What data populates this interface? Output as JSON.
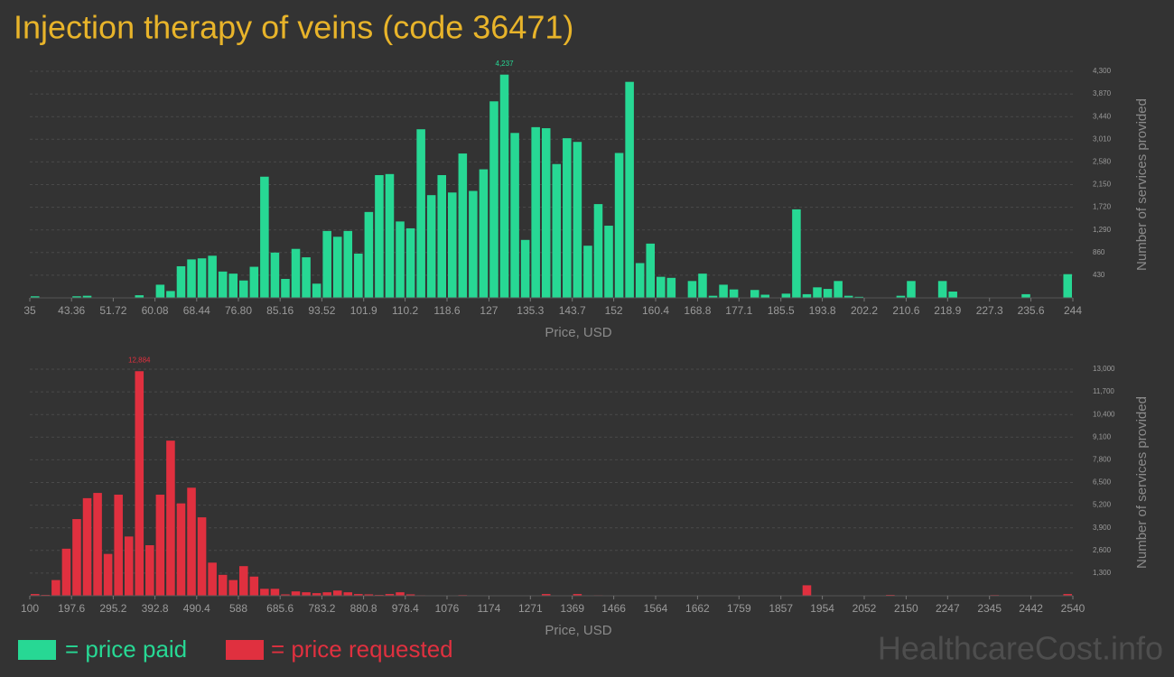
{
  "title": "Injection therapy of veins (code 36471)",
  "chart_data": [
    {
      "type": "histogram",
      "color": "#27d894",
      "xlabel": "Price, USD",
      "ylabel": "Number of services provided",
      "grid": true,
      "bins": [
        35,
        37.09,
        39.18,
        41.27,
        43.36,
        45.45,
        47.54,
        49.63,
        51.72,
        53.81,
        55.9,
        57.99,
        60.08,
        62.17,
        64.26,
        66.35,
        68.44,
        70.53,
        72.62,
        74.71,
        76.8,
        78.89,
        80.98,
        83.07,
        85.16,
        87.25,
        89.34,
        91.43,
        93.52,
        95.61,
        97.7,
        99.79,
        101.88,
        103.97,
        106.06,
        108.15,
        110.24,
        112.33,
        114.42,
        116.51,
        118.6,
        120.69,
        122.78,
        124.87,
        126.96,
        129.05,
        131.14,
        133.23,
        135.32,
        137.41,
        139.5,
        141.59,
        143.68,
        145.77,
        147.86,
        149.95,
        152.04,
        154.13,
        156.22,
        158.31,
        160.4,
        162.49,
        164.58,
        166.67,
        168.76,
        170.85,
        172.94,
        175.03,
        177.12,
        179.21,
        181.3,
        183.39,
        185.48,
        187.57,
        189.66,
        191.75,
        193.84,
        195.93,
        198.02,
        200.11,
        202.2,
        204.29,
        206.38,
        208.47,
        210.56,
        212.65,
        214.74,
        216.83,
        218.92,
        221.01,
        223.1,
        225.19,
        227.28,
        229.37,
        231.46,
        233.55,
        235.64,
        237.73,
        239.82,
        241.91,
        244
      ],
      "values": [
        30,
        0,
        0,
        0,
        30,
        40,
        0,
        0,
        0,
        0,
        50,
        0,
        250,
        130,
        600,
        730,
        750,
        800,
        500,
        460,
        330,
        590,
        2300,
        860,
        360,
        930,
        770,
        270,
        1270,
        1160,
        1270,
        840,
        1630,
        2330,
        2350,
        1450,
        1320,
        3200,
        1950,
        2330,
        2000,
        2740,
        2030,
        2440,
        3730,
        4237,
        3130,
        1100,
        3240,
        3220,
        2540,
        3030,
        2960,
        990,
        1780,
        1370,
        2750,
        4100,
        660,
        1030,
        400,
        380,
        0,
        320,
        460,
        40,
        250,
        160,
        0,
        150,
        60,
        0,
        80,
        1680,
        70,
        200,
        170,
        320,
        40,
        20,
        0,
        0,
        0,
        40,
        320,
        0,
        0,
        320,
        120,
        0,
        0,
        0,
        0,
        0,
        0,
        70,
        0,
        0,
        0,
        450
      ],
      "value_labels": [
        null,
        null,
        null,
        null,
        null,
        null,
        null,
        null,
        null,
        null,
        null,
        null,
        null,
        null,
        null,
        null,
        null,
        null,
        null,
        null,
        null,
        null,
        null,
        null,
        null,
        null,
        null,
        null,
        null,
        null,
        null,
        null,
        null,
        null,
        null,
        null,
        null,
        null,
        null,
        null,
        null,
        null,
        null,
        null,
        null,
        "4,237",
        null,
        null,
        null,
        null,
        null,
        null,
        null,
        null,
        null,
        null,
        null,
        null,
        null,
        null,
        null,
        null,
        null,
        null,
        null,
        null,
        null,
        null,
        null,
        null,
        null,
        null,
        null,
        null,
        null,
        null,
        null,
        null,
        null,
        null,
        null,
        null,
        null,
        null,
        null,
        null,
        null,
        null,
        null,
        null,
        null,
        null,
        null,
        null,
        null,
        null,
        null,
        null,
        null,
        null
      ],
      "xlim": [
        35,
        244
      ],
      "xticks": [
        35,
        43.36,
        51.72,
        60.08,
        68.44,
        {
          "value": 76.8,
          "label": "76.80"
        },
        85.16,
        93.52,
        101.9,
        110.2,
        118.6,
        127,
        135.3,
        143.7,
        152,
        160.4,
        168.8,
        177.1,
        185.5,
        193.8,
        202.2,
        210.6,
        218.9,
        227.3,
        235.6,
        244
      ],
      "ylim": [
        0,
        4300
      ],
      "yticks": [
        {
          "value": 430,
          "label": "430"
        },
        {
          "value": 860,
          "label": "860"
        },
        {
          "value": 1290,
          "label": "1,290"
        },
        {
          "value": 1720,
          "label": "1,720"
        },
        {
          "value": 2150,
          "label": "2,150"
        },
        {
          "value": 2580,
          "label": "2,580"
        },
        {
          "value": 3010,
          "label": "3,010"
        },
        {
          "value": 3440,
          "label": "3,440"
        },
        {
          "value": 3870,
          "label": "3,870"
        },
        {
          "value": 4300,
          "label": "4,300"
        }
      ]
    },
    {
      "type": "histogram",
      "color": "#e0303f",
      "xlabel": "Price, USD",
      "ylabel": "Number of services provided",
      "grid": true,
      "bins": [
        100,
        124.4,
        148.8,
        173.2,
        197.6,
        222,
        246.4,
        270.8,
        295.2,
        319.6,
        344,
        368.4,
        392.8,
        417.2,
        441.6,
        466,
        490.4,
        514.8,
        539.2,
        563.6,
        588,
        612.4,
        636.8,
        661.2,
        685.6,
        710,
        734.4,
        758.8,
        783.2,
        807.6,
        832,
        856.4,
        880.8,
        905.2,
        929.6,
        954,
        978.4,
        1002.8,
        1027.2,
        1051.6,
        1076,
        1100.4,
        1124.8,
        1149.2,
        1173.6,
        1198,
        1222.4,
        1246.8,
        1271.2,
        1295.6,
        1320,
        1344.4,
        1368.8,
        1393.2,
        1417.6,
        1442,
        1466.4,
        1490.8,
        1515.2,
        1539.6,
        1564,
        1588.4,
        1612.8,
        1637.2,
        1661.6,
        1686,
        1710.4,
        1734.8,
        1759.2,
        1783.6,
        1808,
        1832.4,
        1856.8,
        1881.2,
        1905.6,
        1930,
        1954.4,
        1978.8,
        2003.2,
        2027.6,
        2052,
        2076.4,
        2100.8,
        2125.2,
        2149.6,
        2174,
        2198.4,
        2222.8,
        2247.2,
        2271.6,
        2296,
        2320.4,
        2344.8,
        2369.2,
        2393.6,
        2418,
        2442.4,
        2466.8,
        2491.2,
        2515.6,
        2540
      ],
      "values": [
        100,
        50,
        900,
        2700,
        4400,
        5600,
        5900,
        2400,
        5800,
        3400,
        12884,
        2900,
        5800,
        8900,
        5300,
        6200,
        4500,
        1900,
        1200,
        900,
        1700,
        1100,
        400,
        400,
        80,
        250,
        200,
        150,
        200,
        300,
        200,
        100,
        80,
        50,
        100,
        200,
        80,
        30,
        0,
        0,
        0,
        40,
        0,
        0,
        0,
        0,
        0,
        0,
        0,
        100,
        0,
        0,
        100,
        0,
        30,
        0,
        0,
        0,
        0,
        0,
        0,
        0,
        0,
        0,
        0,
        0,
        0,
        0,
        0,
        0,
        0,
        0,
        0,
        0,
        600,
        0,
        0,
        0,
        0,
        0,
        0,
        0,
        50,
        0,
        0,
        0,
        0,
        0,
        0,
        0,
        0,
        0,
        40,
        0,
        0,
        0,
        0,
        0,
        0,
        100
      ],
      "value_labels": [
        null,
        null,
        null,
        null,
        null,
        null,
        null,
        null,
        null,
        null,
        "12,884",
        null,
        null,
        null,
        null,
        null,
        null,
        null,
        null,
        null,
        null,
        null,
        null,
        null,
        null,
        null,
        null,
        null,
        null,
        null,
        null,
        null,
        null,
        null,
        null,
        null,
        null,
        null,
        null,
        null,
        null,
        null,
        null,
        null,
        null,
        null,
        null,
        null,
        null,
        null,
        null,
        null,
        null,
        null,
        null,
        null,
        null,
        null,
        null,
        null,
        null,
        null,
        null,
        null,
        null,
        null,
        null,
        null,
        null,
        null,
        null,
        null,
        null,
        null,
        null,
        null,
        null,
        null,
        null,
        null,
        null,
        null,
        null,
        null,
        null,
        null,
        null,
        null,
        null,
        null,
        null,
        null,
        null,
        null,
        null,
        null,
        null,
        null,
        null,
        null
      ],
      "xlim": [
        100,
        2540
      ],
      "xticks": [
        100,
        197.6,
        295.2,
        392.8,
        490.4,
        588,
        685.6,
        783.2,
        880.8,
        978.4,
        1076,
        1174,
        1271,
        1369,
        1466,
        1564,
        1662,
        1759,
        1857,
        1954,
        2052,
        2150,
        2247,
        2345,
        2442,
        2540
      ],
      "ylim": [
        0,
        13000
      ],
      "yticks": [
        {
          "value": 1300,
          "label": "1,300"
        },
        {
          "value": 2600,
          "label": "2,600"
        },
        {
          "value": 3900,
          "label": "3,900"
        },
        {
          "value": 5200,
          "label": "5,200"
        },
        {
          "value": 6500,
          "label": "6,500"
        },
        {
          "value": 7800,
          "label": "7,800"
        },
        {
          "value": 9100,
          "label": "9,100"
        },
        {
          "value": 10400,
          "label": "10,400"
        },
        {
          "value": 11700,
          "label": "11,700"
        },
        {
          "value": 13000,
          "label": "13,000"
        }
      ]
    }
  ],
  "legend": [
    {
      "label": "= price paid",
      "color": "#27d894"
    },
    {
      "label": "= price requested",
      "color": "#e0303f"
    }
  ],
  "watermark": "HealthcareCost.info"
}
